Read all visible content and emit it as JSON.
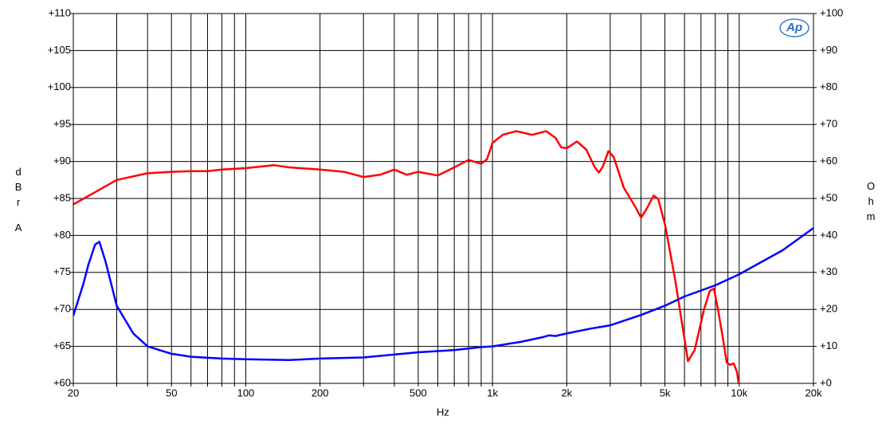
{
  "chart_data": {
    "type": "line",
    "xscale": "log",
    "grid": true,
    "xlabel": "Hz",
    "ylabel": "dBr",
    "ylabel2": "A",
    "y2label": "Ohm",
    "logo": "Ap",
    "xlim": [
      20,
      20000
    ],
    "ylim": [
      60,
      110
    ],
    "y2lim": [
      0,
      100
    ],
    "xticks": [
      20,
      {
        "value": 30,
        "label": null
      },
      {
        "value": 40,
        "label": null
      },
      50,
      {
        "value": 60,
        "label": null
      },
      {
        "value": 70,
        "label": null
      },
      {
        "value": 80,
        "label": null
      },
      {
        "value": 90,
        "label": null
      },
      100,
      200,
      {
        "value": 300,
        "label": null
      },
      {
        "value": 400,
        "label": null
      },
      500,
      {
        "value": 600,
        "label": null
      },
      {
        "value": 700,
        "label": null
      },
      {
        "value": 800,
        "label": null
      },
      {
        "value": 900,
        "label": null
      },
      {
        "value": 1000,
        "label": "1k"
      },
      {
        "value": 2000,
        "label": "2k"
      },
      {
        "value": 3000,
        "label": null
      },
      {
        "value": 4000,
        "label": null
      },
      {
        "value": 5000,
        "label": "5k"
      },
      {
        "value": 6000,
        "label": null
      },
      {
        "value": 7000,
        "label": null
      },
      {
        "value": 8000,
        "label": null
      },
      {
        "value": 9000,
        "label": null
      },
      {
        "value": 10000,
        "label": "10k"
      },
      {
        "value": 20000,
        "label": "20k"
      }
    ],
    "yticks": [
      {
        "value": 60,
        "label": "+60"
      },
      {
        "value": 65,
        "label": "+65"
      },
      {
        "value": 70,
        "label": "+70"
      },
      {
        "value": 75,
        "label": "+75"
      },
      {
        "value": 80,
        "label": "+80"
      },
      {
        "value": 85,
        "label": "+85"
      },
      {
        "value": 90,
        "label": "+90"
      },
      {
        "value": 95,
        "label": "+95"
      },
      {
        "value": 100,
        "label": "+100"
      },
      {
        "value": 105,
        "label": "+105"
      },
      {
        "value": 110,
        "label": "+110"
      }
    ],
    "y2ticks": [
      {
        "value": 0,
        "label": "+0"
      },
      {
        "value": 10,
        "label": "+10"
      },
      {
        "value": 20,
        "label": "+20"
      },
      {
        "value": 30,
        "label": "+30"
      },
      {
        "value": 40,
        "label": "+40"
      },
      {
        "value": 50,
        "label": "+50"
      },
      {
        "value": 60,
        "label": "+60"
      },
      {
        "value": 70,
        "label": "+70"
      },
      {
        "value": 80,
        "label": "+80"
      },
      {
        "value": 90,
        "label": "+90"
      },
      {
        "value": 100,
        "label": "+100"
      }
    ],
    "series": [
      {
        "color": "#ff0000",
        "axis": "y",
        "x": [
          20,
          25,
          30,
          40,
          50,
          60,
          70,
          80,
          100,
          130,
          150,
          200,
          250,
          300,
          350,
          400,
          450,
          500,
          600,
          700,
          800,
          900,
          950,
          1000,
          1100,
          1250,
          1450,
          1650,
          1800,
          1900,
          2000,
          2200,
          2400,
          2600,
          2700,
          2800,
          2950,
          3100,
          3400,
          3800,
          4000,
          4200,
          4500,
          4700,
          5000,
          5500,
          6000,
          6200,
          6600,
          7200,
          7600,
          7900,
          8200,
          8600,
          8900,
          9200,
          9500,
          9800,
          10000
        ],
        "values": [
          84.2,
          86,
          87.5,
          88.4,
          88.6,
          88.7,
          88.7,
          88.9,
          89.1,
          89.5,
          89.2,
          88.9,
          88.6,
          87.9,
          88.2,
          88.9,
          88.2,
          88.6,
          88.1,
          89.2,
          90.2,
          89.7,
          90.3,
          92.5,
          93.6,
          94.1,
          93.6,
          94.1,
          93.2,
          91.9,
          91.8,
          92.7,
          91.6,
          89.2,
          88.5,
          89.3,
          91.4,
          90.6,
          86.5,
          83.8,
          82.4,
          83.5,
          85.4,
          84.9,
          81.5,
          74,
          66,
          63,
          64.5,
          70,
          72.5,
          72.8,
          70,
          66,
          62.8,
          62.5,
          62.7,
          61.5,
          59.5
        ]
      },
      {
        "color": "#0000ff",
        "axis": "y2",
        "x": [
          20,
          22,
          23,
          24.5,
          25.5,
          27,
          30,
          35,
          40,
          50,
          60,
          80,
          100,
          150,
          200,
          300,
          500,
          700,
          900,
          1000,
          1300,
          1600,
          1700,
          1800,
          2000,
          2500,
          3000,
          4000,
          5000,
          6000,
          8000,
          10000,
          15000,
          20000
        ],
        "values": [
          18.3,
          27,
          32,
          37.5,
          38.3,
          33,
          21,
          13.5,
          10,
          8,
          7.2,
          6.7,
          6.5,
          6.3,
          6.7,
          7,
          8.4,
          9,
          9.8,
          10,
          11.2,
          12.5,
          13,
          12.8,
          13.5,
          14.8,
          15.7,
          18.5,
          21,
          23.5,
          26.5,
          29.5,
          36,
          42
        ]
      }
    ]
  }
}
